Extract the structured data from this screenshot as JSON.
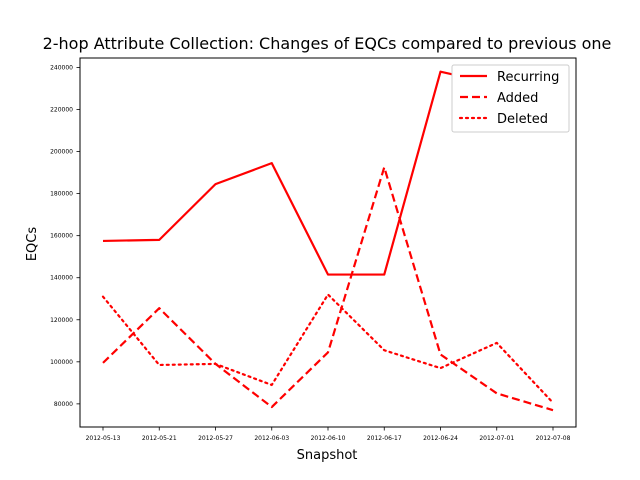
{
  "chart_data": {
    "type": "line",
    "title": "2-hop Attribute Collection: Changes of  EQCs compared to previous one",
    "xlabel": "Snapshot",
    "ylabel": "EQCs",
    "categories": [
      "2012-05-13",
      "2012-05-21",
      "2012-05-27",
      "2012-06-03",
      "2012-06-10",
      "2012-06-17",
      "2012-06-24",
      "2012-07-01",
      "2012-07-08"
    ],
    "yticks": [
      80000,
      100000,
      120000,
      140000,
      160000,
      180000,
      200000,
      220000,
      240000
    ],
    "ytick_labels": [
      "80000",
      "100000",
      "120000",
      "140000",
      "160000",
      "180000",
      "200000",
      "220000",
      "240000"
    ],
    "ylim": [
      69000,
      244500
    ],
    "grid": false,
    "legend_position": "top-right",
    "series": [
      {
        "name": "Recurring",
        "style": "solid",
        "color": "#ff0000",
        "values": [
          157500,
          158000,
          184500,
          194500,
          141500,
          141500,
          238000,
          232000,
          238000
        ]
      },
      {
        "name": "Added",
        "style": "dashed",
        "color": "#ff0000",
        "values": [
          99500,
          125500,
          99000,
          78500,
          104500,
          192500,
          103500,
          85000,
          77000
        ]
      },
      {
        "name": "Deleted",
        "style": "dotted",
        "color": "#ff0000",
        "values": [
          131000,
          98500,
          99000,
          89000,
          132000,
          105500,
          97000,
          109000,
          80500
        ]
      }
    ]
  }
}
